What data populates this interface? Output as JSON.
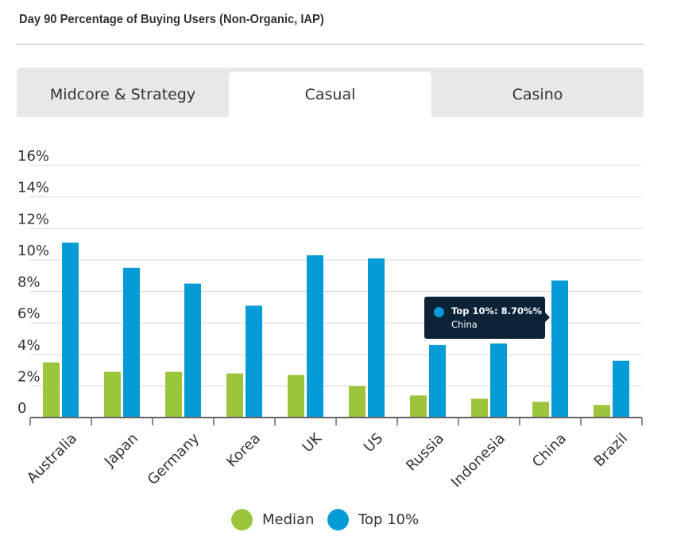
{
  "page_title": "Day 90 Percentage of Buying Users (Non-Organic, IAP)",
  "tabs": [
    {
      "label": "Midcore & Strategy",
      "active": false
    },
    {
      "label": "Casual",
      "active": true
    },
    {
      "label": "Casino",
      "active": false
    }
  ],
  "colors": {
    "median": "#9dc53c",
    "top10": "#059bd6",
    "gridline": "#d9d9d9",
    "axis": "#666666",
    "tooltip_bg": "#0b2237"
  },
  "chart_data": {
    "type": "bar",
    "title": "Day 90 Percentage of Buying Users (Non-Organic, IAP)",
    "categories": [
      "Australia",
      "Japan",
      "Germany",
      "Korea",
      "UK",
      "US",
      "Russia",
      "Indonesia",
      "China",
      "Brazil"
    ],
    "series": [
      {
        "name": "Median",
        "values": [
          3.5,
          2.9,
          2.9,
          2.8,
          2.7,
          2.0,
          1.4,
          1.2,
          1.0,
          0.8
        ]
      },
      {
        "name": "Top 10%",
        "values": [
          11.1,
          9.5,
          8.5,
          7.1,
          10.3,
          10.1,
          4.6,
          4.7,
          8.7,
          3.6
        ]
      }
    ],
    "y_ticks": [
      "0",
      "2%",
      "4%",
      "6%",
      "8%",
      "10%",
      "12%",
      "14%",
      "16%"
    ],
    "ylim": [
      0,
      16
    ],
    "grid": true,
    "legend": "bottom-center",
    "tooltip": {
      "series": "Top 10%",
      "label": "Top 10%: 8.70%%",
      "category": "China"
    }
  },
  "legend": [
    {
      "label": "Median"
    },
    {
      "label": "Top 10%"
    }
  ]
}
